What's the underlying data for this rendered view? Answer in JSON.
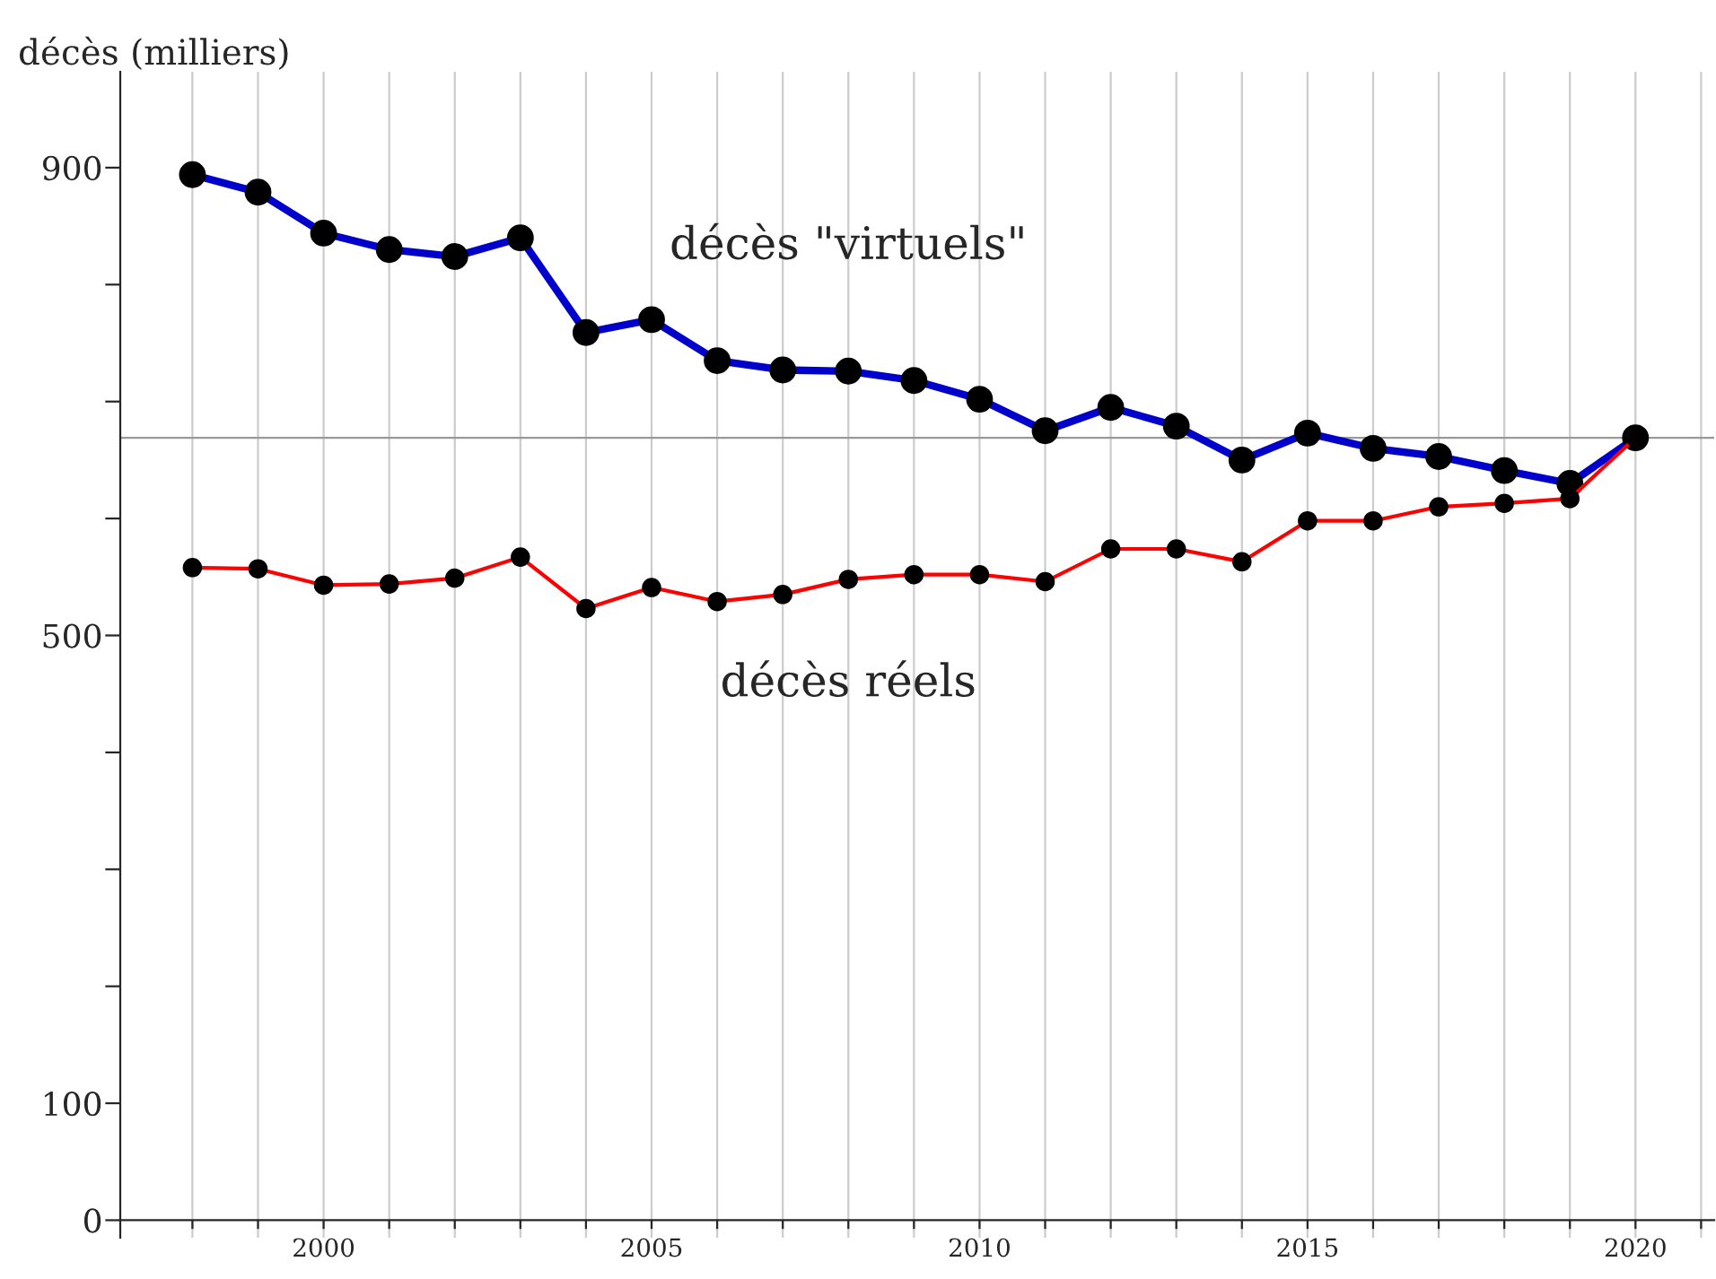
{
  "chart_data": {
    "type": "line",
    "ylabel": "décès (milliers)",
    "x": [
      1998,
      1999,
      2000,
      2001,
      2002,
      2003,
      2004,
      2005,
      2006,
      2007,
      2008,
      2009,
      2010,
      2011,
      2012,
      2013,
      2014,
      2015,
      2016,
      2017,
      2018,
      2019,
      2020
    ],
    "series": [
      {
        "name": "décès \"virtuels\"",
        "color": "#0000cc",
        "values": [
          894,
          879,
          844,
          830,
          824,
          840,
          759,
          770,
          735,
          727,
          726,
          718,
          702,
          675,
          695,
          679,
          650,
          673,
          660,
          653,
          641,
          630,
          669
        ]
      },
      {
        "name": "décès réels",
        "color": "#ff0000",
        "values": [
          558,
          557,
          543,
          544,
          549,
          567,
          523,
          541,
          529,
          535,
          548,
          552,
          552,
          546,
          574,
          574,
          563,
          598,
          598,
          610,
          613,
          617,
          669
        ]
      }
    ],
    "xlim": [
      1996.9,
      2021.2
    ],
    "xticks": [
      {
        "value": 1998,
        "label": null
      },
      {
        "value": 1999,
        "label": null
      },
      2000,
      {
        "value": 2001,
        "label": null
      },
      {
        "value": 2002,
        "label": null
      },
      {
        "value": 2003,
        "label": null
      },
      {
        "value": 2004,
        "label": null
      },
      2005,
      {
        "value": 2006,
        "label": null
      },
      {
        "value": 2007,
        "label": null
      },
      {
        "value": 2008,
        "label": null
      },
      {
        "value": 2009,
        "label": null
      },
      2010,
      {
        "value": 2011,
        "label": null
      },
      {
        "value": 2012,
        "label": null
      },
      {
        "value": 2013,
        "label": null
      },
      {
        "value": 2014,
        "label": null
      },
      2015,
      {
        "value": 2016,
        "label": null
      },
      {
        "value": 2017,
        "label": null
      },
      {
        "value": 2018,
        "label": null
      },
      {
        "value": 2019,
        "label": null
      },
      2020,
      {
        "value": 2021,
        "label": null
      }
    ],
    "ylim": [
      -15,
      982
    ],
    "yticks": [
      0,
      100,
      {
        "value": 200,
        "label": null
      },
      {
        "value": 300,
        "label": null
      },
      {
        "value": 400,
        "label": null
      },
      500,
      {
        "value": 600,
        "label": null
      },
      {
        "value": 700,
        "label": null
      },
      {
        "value": 800,
        "label": null
      },
      900
    ],
    "grid": "x",
    "marker": "circle",
    "line_style": "solid",
    "legend": false,
    "ref_lines": [
      {
        "axis": "y",
        "value": 669,
        "color": "#999999"
      }
    ]
  }
}
